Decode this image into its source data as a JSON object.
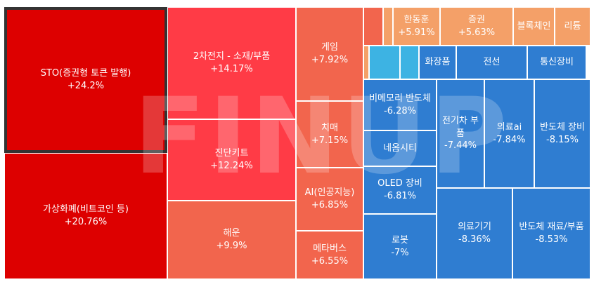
{
  "chart_data": {
    "type": "treemap",
    "watermark": "FINUP",
    "selected": "STO(증권형 토큰 발행)",
    "colors": {
      "up_strong": "#DD0000",
      "up_mid": "#FF3B46",
      "up_soft": "#F2654D",
      "up_light": "#F4A068",
      "down": "#2F7DD1",
      "down_light": "#3DB3E3",
      "border_selected": "#333333"
    },
    "tiles": [
      {
        "name": "STO(증권형 토큰 발행)",
        "value": "+24.2%"
      },
      {
        "name": "가상화폐(비트코인 등)",
        "value": "+20.76%"
      },
      {
        "name": "2차전지 - 소재/부품",
        "value": "+14.17%"
      },
      {
        "name": "진단키트",
        "value": "+12.24%"
      },
      {
        "name": "해운",
        "value": "+9.9%"
      },
      {
        "name": "게임",
        "value": "+7.92%"
      },
      {
        "name": "치매",
        "value": "+7.15%"
      },
      {
        "name": "AI(인공지능)",
        "value": "+6.85%"
      },
      {
        "name": "메타버스",
        "value": "+6.55%"
      },
      {
        "name": "한동훈",
        "value": "+5.91%"
      },
      {
        "name": "증권",
        "value": "+5.63%"
      },
      {
        "name": "블록체인",
        "value": ""
      },
      {
        "name": "리튬",
        "value": ""
      },
      {
        "name": "",
        "value": ""
      },
      {
        "name": "",
        "value": ""
      },
      {
        "name": "",
        "value": ""
      },
      {
        "name": "",
        "value": ""
      },
      {
        "name": "",
        "value": ""
      },
      {
        "name": "화장품",
        "value": ""
      },
      {
        "name": "전선",
        "value": ""
      },
      {
        "name": "통신장비",
        "value": ""
      },
      {
        "name": "비메모리 반도체",
        "value": "-6.28%"
      },
      {
        "name": "네옴시티",
        "value": ""
      },
      {
        "name": "OLED 장비",
        "value": "-6.81%"
      },
      {
        "name": "로봇",
        "value": "-7%"
      },
      {
        "name": "전기차 부품",
        "value": "-7.44%"
      },
      {
        "name": "의료ai",
        "value": "-7.84%"
      },
      {
        "name": "반도체 장비",
        "value": "-8.15%"
      },
      {
        "name": "의료기기",
        "value": "-8.36%"
      },
      {
        "name": "반도체 재료/부품",
        "value": "-8.53%"
      }
    ]
  }
}
